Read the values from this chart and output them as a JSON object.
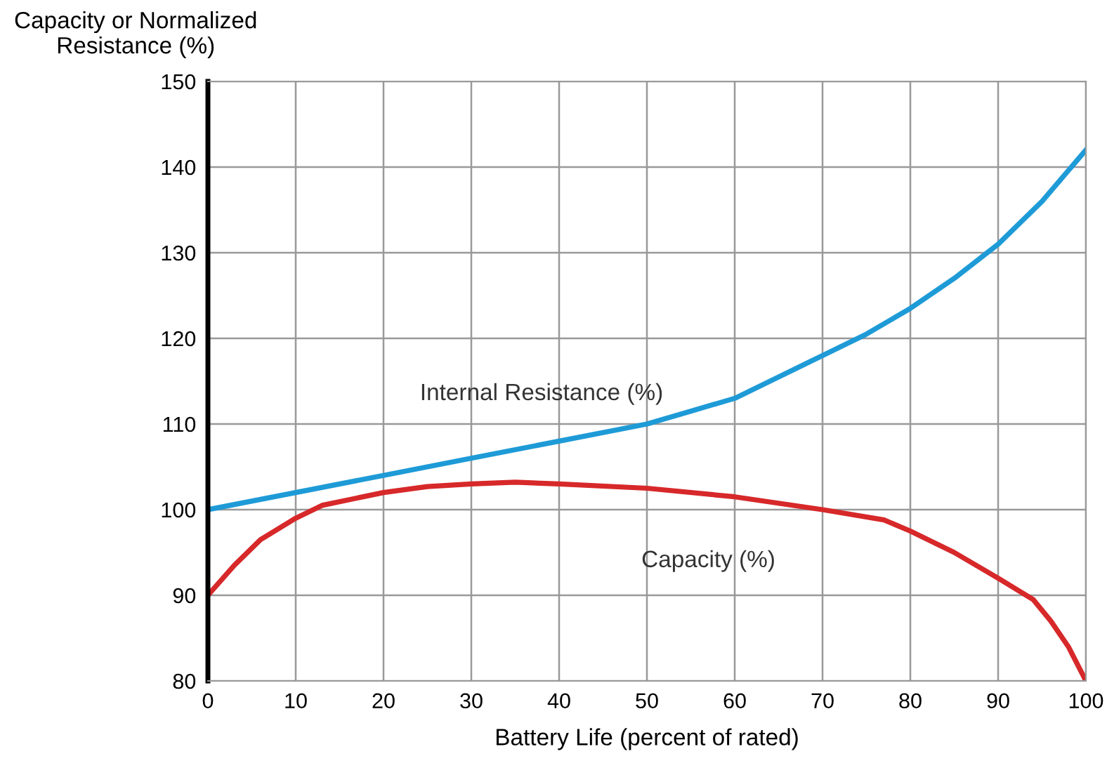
{
  "chart_data": {
    "type": "line",
    "xlabel": "Battery Life (percent of rated)",
    "ylabel": "Capacity or Normalized\nResistance (%)",
    "xlim": [
      0,
      100
    ],
    "xticks": [
      0,
      10,
      20,
      30,
      40,
      50,
      60,
      70,
      80,
      90,
      100
    ],
    "ylim": [
      80,
      150
    ],
    "yticks": [
      80,
      90,
      100,
      110,
      120,
      130,
      140,
      150
    ],
    "grid": true,
    "legend": false,
    "marker": "none",
    "line_style": "solid",
    "series": [
      {
        "name": "Internal Resistance (%)",
        "color": "#1e9bd7",
        "x": [
          0,
          10,
          20,
          30,
          40,
          50,
          55,
          60,
          65,
          70,
          75,
          80,
          85,
          90,
          95,
          100
        ],
        "values": [
          100,
          102,
          104,
          106,
          108,
          110,
          111.5,
          113,
          115.5,
          118,
          120.5,
          123.5,
          127,
          131,
          136,
          142
        ]
      },
      {
        "name": "Capacity (%)",
        "color": "#d7282a",
        "x": [
          0,
          3,
          6,
          10,
          13,
          20,
          25,
          30,
          35,
          40,
          50,
          60,
          70,
          77,
          80,
          85,
          90,
          94,
          96,
          98,
          100
        ],
        "values": [
          90,
          93.5,
          96.5,
          99,
          100.5,
          102,
          102.7,
          103,
          103.2,
          103,
          102.5,
          101.5,
          100,
          98.8,
          97.5,
          95,
          92,
          89.5,
          87,
          84,
          80
        ]
      }
    ]
  }
}
